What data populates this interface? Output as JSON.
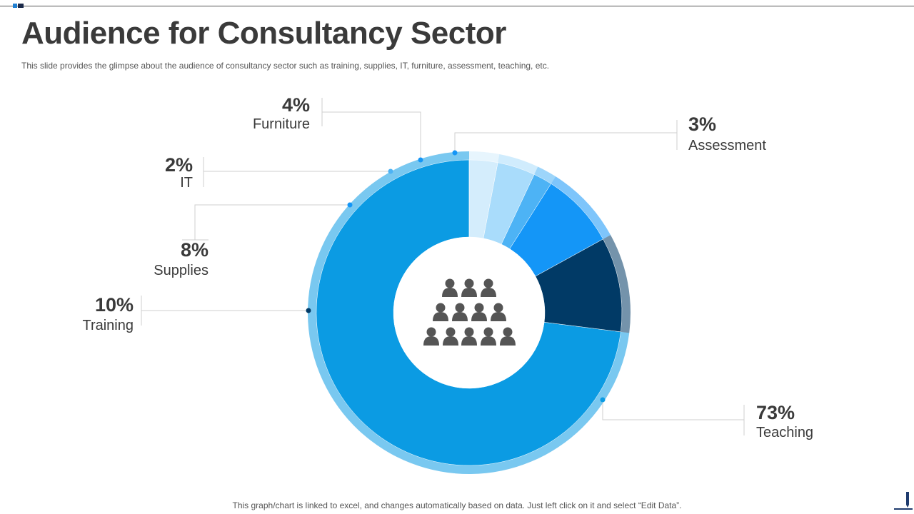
{
  "slide": {
    "title": "Audience for Consultancy Sector",
    "subtitle": "This slide provides the glimpse about the audience of consultancy sector such as training, supplies, IT, furniture, assessment, teaching, etc.",
    "footer": "This graph/chart is linked to excel,  and changes automatically based on data. Just left click on it and select “Edit Data”."
  },
  "chart_data": {
    "type": "pie",
    "variant": "donut",
    "title": "",
    "legend": "none",
    "center_icon": "people-group-icon",
    "slices": [
      {
        "name": "Teaching",
        "value": 73,
        "label": "73%",
        "color": "#0B9BE3"
      },
      {
        "name": "Training",
        "value": 10,
        "label": "10%",
        "color": "#013A66"
      },
      {
        "name": "Supplies",
        "value": 8,
        "label": "8%",
        "color": "#1496F7"
      },
      {
        "name": "IT",
        "value": 2,
        "label": "2%",
        "color": "#4DB3F5"
      },
      {
        "name": "Furniture",
        "value": 4,
        "label": "4%",
        "color": "#A9DCFB"
      },
      {
        "name": "Assessment",
        "value": 3,
        "label": "3%",
        "color": "#D4EDFC"
      }
    ]
  },
  "colors": {
    "title": "#3a3a3a",
    "label_text": "#3a3a3a",
    "leader_line": "#cfcfcf",
    "icon": "#555555",
    "accent": "#1f7fd1"
  }
}
